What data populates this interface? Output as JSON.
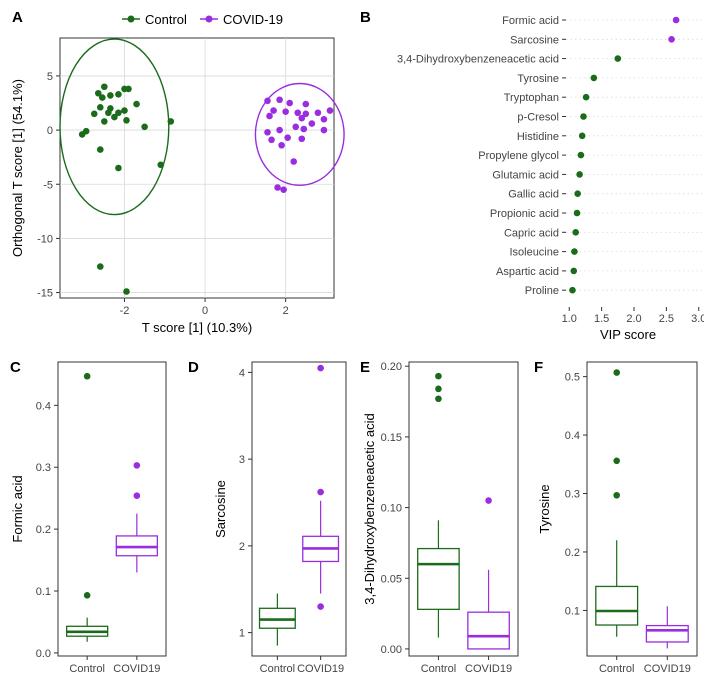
{
  "colors": {
    "control": "#1a6b1a",
    "covid": "#9a2de0",
    "grid": "#d9d9d9",
    "axis": "#333333"
  },
  "chart_data": [
    {
      "panel": "A",
      "type": "scatter",
      "xlabel": "T score [1] (10.3%)",
      "ylabel": "Orthogonal T score [1] (54.1%)",
      "xlim": [
        -3.6,
        3.2
      ],
      "ylim": [
        -15.5,
        8.5
      ],
      "xticks": [
        -2,
        0,
        2
      ],
      "yticks": [
        5,
        0,
        -5,
        -10,
        -15
      ],
      "grid": true,
      "legend": "top",
      "series": [
        {
          "name": "Control",
          "color_key": "control",
          "points": [
            [
              -2.5,
              4.0
            ],
            [
              -2.65,
              3.4
            ],
            [
              -2.35,
              3.2
            ],
            [
              -2.0,
              3.8
            ],
            [
              -2.15,
              3.3
            ],
            [
              -1.9,
              3.8
            ],
            [
              -2.55,
              3.0
            ],
            [
              -1.7,
              2.4
            ],
            [
              -2.35,
              2.0
            ],
            [
              -2.6,
              2.1
            ],
            [
              -2.4,
              1.6
            ],
            [
              -2.15,
              1.6
            ],
            [
              -2.0,
              1.8
            ],
            [
              -2.75,
              1.5
            ],
            [
              -2.25,
              1.2
            ],
            [
              -1.95,
              0.9
            ],
            [
              -2.5,
              0.8
            ],
            [
              -1.5,
              0.3
            ],
            [
              -2.95,
              -0.1
            ],
            [
              -3.05,
              -0.4
            ],
            [
              -2.6,
              -1.8
            ],
            [
              -0.85,
              0.8
            ],
            [
              -1.1,
              -3.2
            ],
            [
              -2.15,
              -3.5
            ],
            [
              -2.6,
              -12.6
            ],
            [
              -1.95,
              -14.9
            ]
          ],
          "ellipse": {
            "cx": -2.25,
            "cy": 0.3,
            "rx": 1.35,
            "ry": 8.1
          }
        },
        {
          "name": "COVID-19",
          "color_key": "covid",
          "points": [
            [
              1.55,
              2.7
            ],
            [
              1.85,
              2.8
            ],
            [
              2.1,
              2.5
            ],
            [
              2.5,
              2.4
            ],
            [
              1.7,
              1.8
            ],
            [
              2.0,
              1.7
            ],
            [
              2.3,
              1.6
            ],
            [
              2.5,
              1.5
            ],
            [
              2.8,
              1.6
            ],
            [
              3.1,
              1.8
            ],
            [
              1.6,
              1.3
            ],
            [
              2.4,
              1.1
            ],
            [
              2.65,
              0.6
            ],
            [
              2.95,
              1.0
            ],
            [
              2.25,
              0.3
            ],
            [
              2.45,
              0.1
            ],
            [
              1.55,
              -0.2
            ],
            [
              1.85,
              0.0
            ],
            [
              2.95,
              0.0
            ],
            [
              1.65,
              -0.9
            ],
            [
              2.05,
              -0.7
            ],
            [
              2.4,
              -0.8
            ],
            [
              1.9,
              -1.4
            ],
            [
              2.2,
              -2.9
            ],
            [
              1.8,
              -5.3
            ],
            [
              1.95,
              -5.5
            ]
          ],
          "ellipse": {
            "cx": 2.35,
            "cy": -0.4,
            "rx": 1.1,
            "ry": 4.7
          }
        }
      ]
    },
    {
      "panel": "B",
      "type": "scatter",
      "xlabel": "VIP score",
      "xlim": [
        0.95,
        3.05
      ],
      "xticks": [
        1.0,
        1.5,
        2.0,
        2.5,
        3.0
      ],
      "tick_labels": [
        "1.0",
        "1.5",
        "2.0",
        "2.5",
        "3.0"
      ],
      "categories": [
        "Formic acid",
        "Sarcosine",
        "3,4-Dihydroxybenzeneacetic acid",
        "Tyrosine",
        "Tryptophan",
        "p-Cresol",
        "Histidine",
        "Propylene glycol",
        "Glutamic acid",
        "Gallic acid",
        "Propionic acid",
        "Capric acid",
        "Isoleucine",
        "Aspartic acid",
        "Proline"
      ],
      "values": [
        2.65,
        2.58,
        1.75,
        1.38,
        1.26,
        1.22,
        1.2,
        1.18,
        1.16,
        1.13,
        1.12,
        1.1,
        1.08,
        1.07,
        1.05
      ],
      "color_keys": [
        "covid",
        "covid",
        "control",
        "control",
        "control",
        "control",
        "control",
        "control",
        "control",
        "control",
        "control",
        "control",
        "control",
        "control",
        "control"
      ]
    },
    {
      "panel": "C",
      "type": "box",
      "ylabel": "Formic acid",
      "ylim": [
        -0.005,
        0.47
      ],
      "yticks": [
        0.0,
        0.1,
        0.2,
        0.3,
        0.4
      ],
      "tick_labels": [
        "0.0",
        "0.1",
        "0.2",
        "0.3",
        "0.4"
      ],
      "categories": [
        "Control",
        "COVID19"
      ],
      "boxes": [
        {
          "color_key": "control",
          "min": 0.018,
          "q1": 0.027,
          "median": 0.034,
          "q3": 0.043,
          "max": 0.057,
          "outliers": [
            0.093,
            0.447
          ]
        },
        {
          "color_key": "covid",
          "min": 0.13,
          "q1": 0.157,
          "median": 0.171,
          "q3": 0.189,
          "max": 0.225,
          "outliers": [
            0.254,
            0.303
          ]
        }
      ]
    },
    {
      "panel": "D",
      "type": "box",
      "ylabel": "Sarcosine",
      "ylim": [
        0.73,
        4.12
      ],
      "yticks": [
        1,
        2,
        3,
        4
      ],
      "tick_labels": [
        "1",
        "2",
        "3",
        "4"
      ],
      "categories": [
        "Control",
        "COVID19"
      ],
      "boxes": [
        {
          "color_key": "control",
          "min": 0.85,
          "q1": 1.05,
          "median": 1.15,
          "q3": 1.28,
          "max": 1.45,
          "outliers": []
        },
        {
          "color_key": "covid",
          "min": 1.45,
          "q1": 1.82,
          "median": 1.97,
          "q3": 2.11,
          "max": 2.52,
          "outliers": [
            1.3,
            2.62,
            4.05
          ]
        }
      ]
    },
    {
      "panel": "E",
      "type": "box",
      "ylabel": "3,4-Dihydroxybenzeneacetic acid",
      "ylim": [
        -0.005,
        0.203
      ],
      "yticks": [
        0.0,
        0.05,
        0.1,
        0.15,
        0.2
      ],
      "tick_labels": [
        "0.00",
        "0.05",
        "0.10",
        "0.15",
        "0.20"
      ],
      "categories": [
        "Control",
        "COVID19"
      ],
      "boxes": [
        {
          "color_key": "control",
          "min": 0.008,
          "q1": 0.028,
          "median": 0.06,
          "q3": 0.071,
          "max": 0.091,
          "outliers": [
            0.177,
            0.184,
            0.193
          ]
        },
        {
          "color_key": "covid",
          "min": 0.0,
          "q1": 0.0,
          "median": 0.009,
          "q3": 0.026,
          "max": 0.056,
          "outliers": [
            0.105
          ]
        }
      ]
    },
    {
      "panel": "F",
      "type": "box",
      "ylabel": "Tyrosine",
      "ylim": [
        0.022,
        0.525
      ],
      "yticks": [
        0.1,
        0.2,
        0.3,
        0.4,
        0.5
      ],
      "tick_labels": [
        "0.1",
        "0.2",
        "0.3",
        "0.4",
        "0.5"
      ],
      "categories": [
        "Control",
        "COVID19"
      ],
      "boxes": [
        {
          "color_key": "control",
          "min": 0.055,
          "q1": 0.075,
          "median": 0.099,
          "q3": 0.141,
          "max": 0.22,
          "outliers": [
            0.297,
            0.356,
            0.507
          ]
        },
        {
          "color_key": "covid",
          "min": 0.035,
          "q1": 0.046,
          "median": 0.066,
          "q3": 0.074,
          "max": 0.107,
          "outliers": []
        }
      ]
    }
  ],
  "panel_letters": [
    "A",
    "B",
    "C",
    "D",
    "E",
    "F"
  ],
  "legend": {
    "control_label": "Control",
    "covid_label": "COVID-19"
  }
}
